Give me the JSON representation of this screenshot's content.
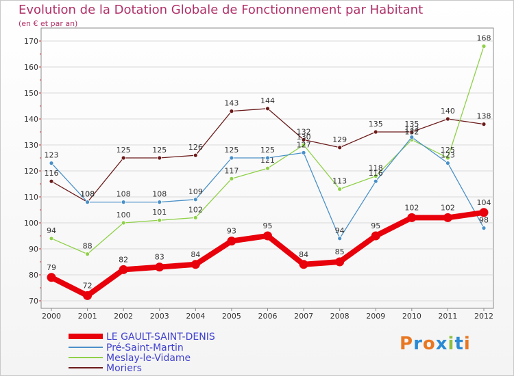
{
  "title": "Evolution de la Dotation Globale de Fonctionnement par Habitant",
  "subtitle": "(en € et par an)",
  "logo": {
    "text": "Proxiti",
    "colors": [
      "#e87722",
      "#2a8ad4",
      "#e87722",
      "#2a8ad4",
      "#8dbf3f",
      "#2a8ad4",
      "#e87722"
    ]
  },
  "chart_data": {
    "type": "line",
    "title": "Evolution de la Dotation Globale de Fonctionnement par Habitant",
    "subtitle": "(en € et par an)",
    "xlabel": "",
    "ylabel": "",
    "x": [
      "2000",
      "2001",
      "2002",
      "2003",
      "2004",
      "2005",
      "2006",
      "2007",
      "2008",
      "2009",
      "2010",
      "2011",
      "2012"
    ],
    "ylim": [
      70,
      170
    ],
    "yticks": [
      "70",
      "80",
      "90",
      "100",
      "110",
      "120",
      "130",
      "140",
      "150",
      "160",
      "170"
    ],
    "legend_position": "bottom-left",
    "series": [
      {
        "name": "LE GAULT-SAINT-DENIS",
        "color": "#e8000b",
        "values": [
          79,
          72,
          82,
          83,
          84,
          93,
          95,
          84,
          85,
          95,
          102,
          102,
          104
        ]
      },
      {
        "name": "Pré-Saint-Martin",
        "color": "#4a90c8",
        "values": [
          123,
          108,
          108,
          108,
          109,
          125,
          125,
          127,
          94,
          116,
          133,
          123,
          98
        ]
      },
      {
        "name": "Meslay-le-Vidame",
        "color": "#8fd048",
        "values": [
          94,
          88,
          100,
          101,
          102,
          117,
          121,
          130,
          113,
          118,
          132,
          125,
          168
        ]
      },
      {
        "name": "Moriers",
        "color": "#6b1a1a",
        "values": [
          116,
          108,
          125,
          125,
          126,
          143,
          144,
          132,
          129,
          135,
          135,
          140,
          138
        ]
      }
    ]
  }
}
